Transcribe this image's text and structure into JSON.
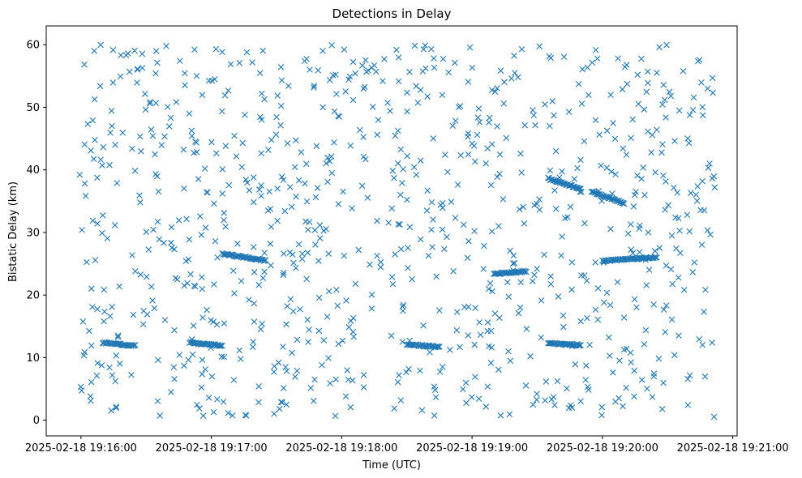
{
  "chart_data": {
    "type": "scatter",
    "title": "Detections in Delay",
    "xlabel": "Time (UTC)",
    "ylabel": "Bistatic Delay (km)",
    "marker": "x",
    "color": "#1f77b4",
    "grid": false,
    "x_is_time": true,
    "xlim": [
      "2025-02-18 19:15:44",
      "2025-02-18 19:21:02"
    ],
    "ylim": [
      -2.5,
      63
    ],
    "xticks": [
      {
        "t": "2025-02-18 19:16:00",
        "label": "2025-02-18 19:16:00"
      },
      {
        "t": "2025-02-18 19:17:00",
        "label": "2025-02-18 19:17:00"
      },
      {
        "t": "2025-02-18 19:18:00",
        "label": "2025-02-18 19:18:00"
      },
      {
        "t": "2025-02-18 19:19:00",
        "label": "2025-02-18 19:19:00"
      },
      {
        "t": "2025-02-18 19:20:00",
        "label": "2025-02-18 19:20:00"
      },
      {
        "t": "2025-02-18 19:21:00",
        "label": "2025-02-18 19:21:00"
      }
    ],
    "yticks": [
      0,
      10,
      20,
      30,
      40,
      50,
      60
    ],
    "tracks": [
      {
        "start": "2025-02-18 19:16:10",
        "end": "2025-02-18 19:16:25",
        "delay_start": 12.4,
        "delay_end": 11.9
      },
      {
        "start": "2025-02-18 19:16:50",
        "end": "2025-02-18 19:17:05",
        "delay_start": 12.4,
        "delay_end": 11.9
      },
      {
        "start": "2025-02-18 19:17:05",
        "end": "2025-02-18 19:17:25",
        "delay_start": 26.6,
        "delay_end": 25.5
      },
      {
        "start": "2025-02-18 19:18:30",
        "end": "2025-02-18 19:18:45",
        "delay_start": 12.1,
        "delay_end": 11.7
      },
      {
        "start": "2025-02-18 19:19:10",
        "end": "2025-02-18 19:19:25",
        "delay_start": 23.4,
        "delay_end": 23.8
      },
      {
        "start": "2025-02-18 19:19:35",
        "end": "2025-02-18 19:19:50",
        "delay_start": 38.6,
        "delay_end": 37.0
      },
      {
        "start": "2025-02-18 19:19:55",
        "end": "2025-02-18 19:20:10",
        "delay_start": 36.5,
        "delay_end": 34.7
      },
      {
        "start": "2025-02-18 19:20:00",
        "end": "2025-02-18 19:20:25",
        "delay_start": 25.5,
        "delay_end": 26.0
      },
      {
        "start": "2025-02-18 19:19:35",
        "end": "2025-02-18 19:19:50",
        "delay_start": 12.3,
        "delay_end": 12.0
      }
    ],
    "background_points_count": 900
  }
}
